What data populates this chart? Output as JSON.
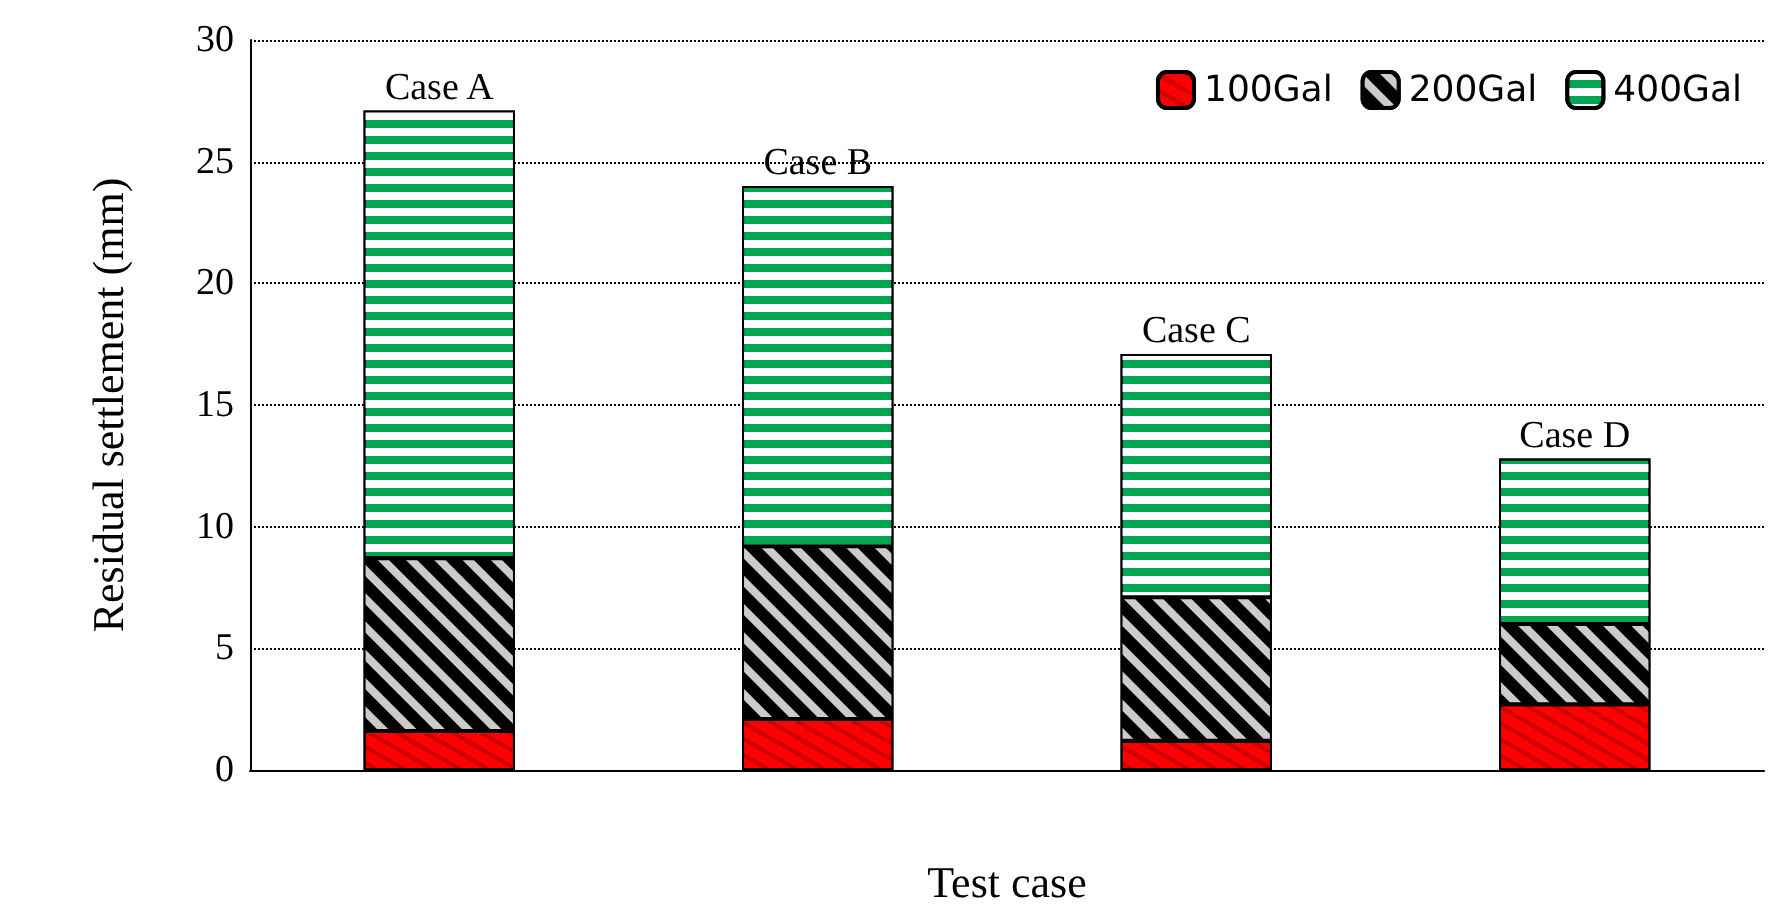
{
  "chart_data": {
    "type": "bar",
    "stacked": true,
    "xlabel": "Test case",
    "ylabel": "Residual settlement (mm)",
    "categories": [
      null,
      null,
      null,
      null
    ],
    "series": [
      {
        "name": "100Gal",
        "color": "#ff0000",
        "values": [
          1.6,
          2.1,
          1.2,
          2.7
        ]
      },
      {
        "name": "200Gal",
        "color": "#000000",
        "values": [
          7.1,
          7.1,
          5.9,
          3.3
        ]
      },
      {
        "name": "400Gal",
        "color": "#00a651",
        "values": [
          18.4,
          14.8,
          10.0,
          6.8
        ]
      }
    ],
    "annotations": [
      {
        "text": "Case A",
        "y": 27.1
      },
      {
        "text": "Case B",
        "y": 24.0
      },
      {
        "text": "Case C",
        "y": 17.1
      },
      {
        "text": "Case D",
        "y": 12.8
      }
    ],
    "ylim": [
      0,
      30
    ],
    "yticks": [
      0,
      5,
      10,
      15,
      20,
      25,
      30
    ],
    "grid": "y",
    "legend": "top right"
  }
}
